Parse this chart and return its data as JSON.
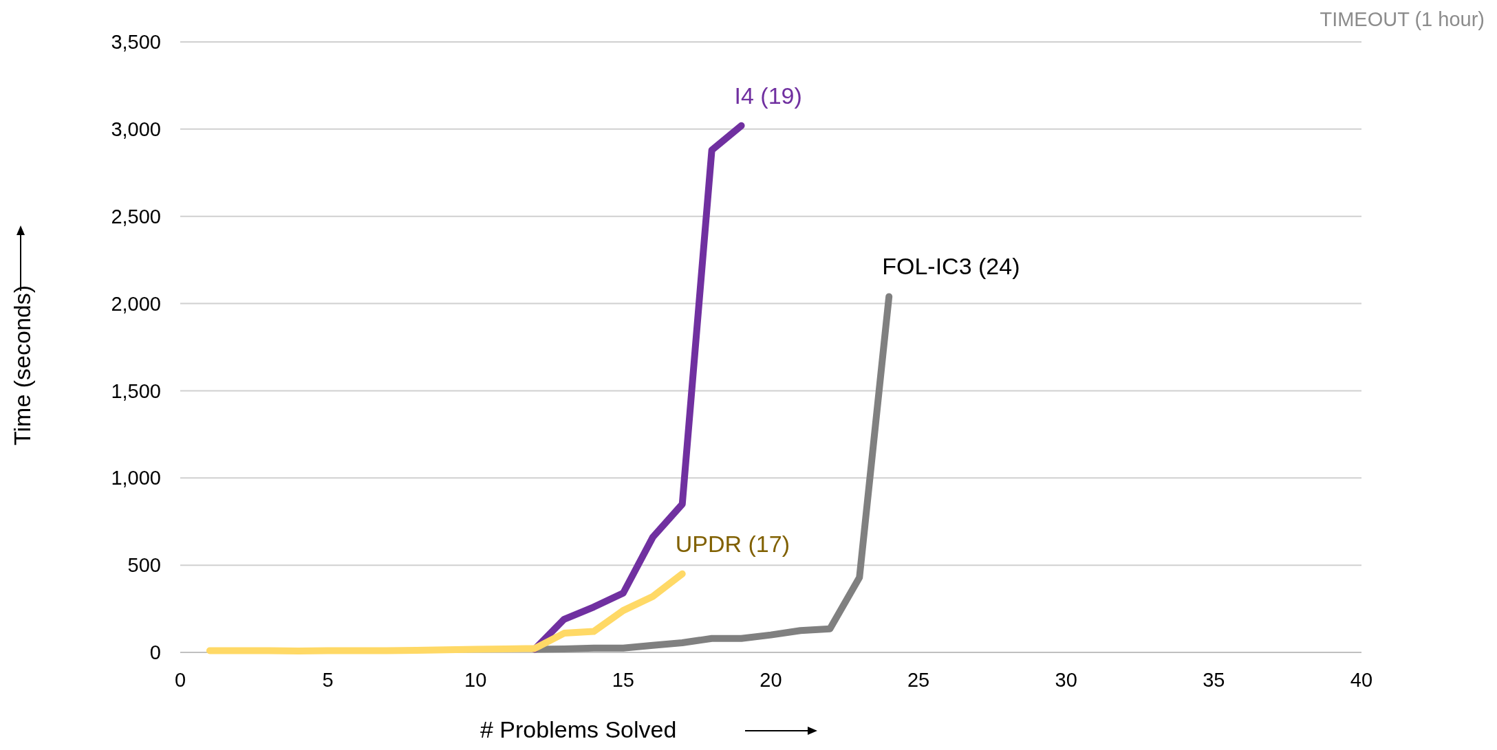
{
  "chart_data": {
    "type": "line",
    "xlabel": "# Problems Solved",
    "ylabel": "Time (seconds)",
    "xlim": [
      0,
      40
    ],
    "xticks": [
      0,
      5,
      10,
      15,
      20,
      25,
      30,
      35,
      40
    ],
    "ylim": [
      0,
      3500
    ],
    "yticks": [
      {
        "value": 0,
        "label": "0"
      },
      {
        "value": 500,
        "label": "500"
      },
      {
        "value": 1000,
        "label": "1,000"
      },
      {
        "value": 1500,
        "label": "1,500"
      },
      {
        "value": 2000,
        "label": "2,000"
      },
      {
        "value": 2500,
        "label": "2,500"
      },
      {
        "value": 3000,
        "label": "3,000"
      },
      {
        "value": 3500,
        "label": "3,500"
      }
    ],
    "grid": "y",
    "legend": false,
    "marker": "none",
    "line_style": "solid",
    "annotations": [
      "TIMEOUT (1 hour)"
    ],
    "series": [
      {
        "name": "FOL-IC3 (24)",
        "color": "#808080",
        "x": [
          12,
          13,
          14,
          15,
          16,
          17,
          18,
          19,
          20,
          21,
          22,
          23,
          24
        ],
        "values": [
          18,
          20,
          25,
          25,
          40,
          55,
          80,
          80,
          100,
          125,
          135,
          430,
          2040
        ]
      },
      {
        "name": "I4 (19)",
        "color": "#7030a0",
        "x": [
          12,
          13,
          14,
          15,
          16,
          17,
          18,
          19
        ],
        "values": [
          18,
          190,
          260,
          340,
          660,
          850,
          2880,
          3020
        ]
      },
      {
        "name": "UPDR (17)",
        "color": "#ffd966",
        "x": [
          1,
          2,
          3,
          4,
          5,
          6,
          7,
          8,
          9,
          10,
          11,
          12,
          13,
          14,
          15,
          16,
          17
        ],
        "values": [
          10,
          10,
          10,
          8,
          10,
          10,
          10,
          12,
          15,
          18,
          20,
          22,
          110,
          120,
          240,
          320,
          450
        ]
      }
    ]
  }
}
